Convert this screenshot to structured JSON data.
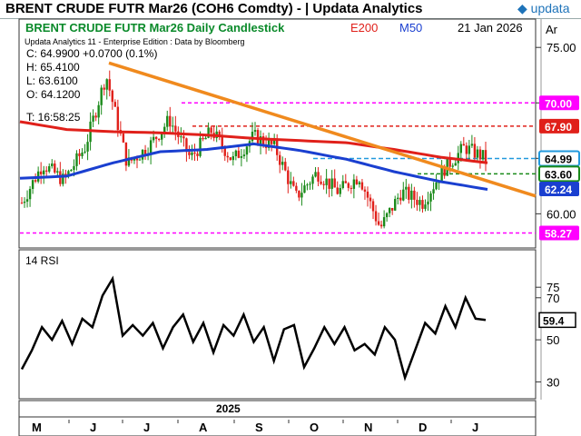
{
  "window": {
    "title": "BRENT CRUDE FUTR  Mar26 (COH6 Comdty) - | Updata Analytics",
    "logo": "updata"
  },
  "header": {
    "name": "BRENT CRUDE FUTR  Mar26 Daily Candlestick",
    "e200": "E200",
    "m50": "M50",
    "date": "21 Jan 2026",
    "axis_unit": "Ar"
  },
  "info": {
    "edition": "Updata Analytics 11 - Enterprise Edition : Data by Bloomberg",
    "lines": [
      "C: 64.9900 +0.0700 (0.1%)",
      "H: 65.4100",
      "L: 63.6100",
      "O: 64.1200",
      "T: 16:58:25"
    ]
  },
  "colors": {
    "up": "#1a8a1a",
    "down": "#e0201a",
    "e200": "#e0201a",
    "m50": "#1a3fd0",
    "trend": "#f08a1e",
    "magenta": "#ff00ff",
    "cyan": "#2299dd",
    "rsi": "#000000"
  },
  "chart_data": [
    {
      "type": "candlestick",
      "title": "BRENT CRUDE FUTR  Mar26 Daily Candlestick",
      "ylim": [
        57,
        76
      ],
      "y_ticks": [
        75.0,
        70.0,
        65.0,
        60.0
      ],
      "x_ticks": [
        "M",
        "J",
        "J",
        "A",
        "S",
        "O",
        "N",
        "D",
        "J"
      ],
      "x_year_label": "2025",
      "last": {
        "open": 64.12,
        "high": 65.41,
        "low": 63.61,
        "close": 64.99,
        "change": 0.07,
        "change_pct": 0.1
      },
      "series": [
        {
          "name": "E200",
          "values": [
            68.3,
            67.6,
            67.4,
            67.3,
            67.1,
            66.8,
            66.6,
            66.4,
            65.8,
            65.1,
            64.6
          ]
        },
        {
          "name": "M50",
          "values": [
            63.2,
            63.4,
            64.6,
            65.6,
            65.8,
            66.3,
            65.7,
            64.9,
            63.8,
            62.9,
            62.2
          ]
        }
      ],
      "price_path": [
        61.0,
        64.5,
        63.0,
        66.0,
        72.5,
        64.5,
        66.0,
        68.5,
        65.0,
        67.5,
        64.8,
        67.0,
        66.0,
        61.5,
        63.7,
        62.0,
        63.4,
        58.7,
        62.0,
        61.0,
        64.0,
        66.0,
        64.99
      ],
      "levels": [
        {
          "label": "70.00",
          "value": 70.0,
          "color": "#ff00ff"
        },
        {
          "label": "67.90",
          "value": 67.9,
          "color": "#e0201a"
        },
        {
          "label": "64.99",
          "value": 64.99,
          "color": "#2299dd"
        },
        {
          "label": "63.60",
          "value": 63.6,
          "color": "#1a8a1a"
        },
        {
          "label": "62.24",
          "value": 62.24,
          "color": "#1a3fd0"
        },
        {
          "label": "58.27",
          "value": 58.27,
          "color": "#ff00ff"
        }
      ],
      "trendline": {
        "from": 73.6,
        "to": 61.6
      }
    },
    {
      "type": "line",
      "title": "14 RSI",
      "ylim": [
        25,
        82
      ],
      "y_ticks": [
        75.0,
        70,
        50.0,
        30
      ],
      "last_label": "59.4",
      "last": 59.4,
      "values": [
        36,
        45,
        56,
        50,
        59,
        48,
        60,
        56,
        71,
        79,
        52,
        57,
        52,
        58,
        46,
        56,
        62,
        49,
        58,
        44,
        57,
        52,
        62,
        49,
        56,
        40,
        55,
        57,
        37,
        46,
        56,
        48,
        56,
        45,
        48,
        43,
        56,
        50,
        32,
        45,
        58,
        53,
        66,
        56,
        70,
        60,
        59.4
      ],
      "overbought": 70,
      "oversold": 30
    }
  ]
}
